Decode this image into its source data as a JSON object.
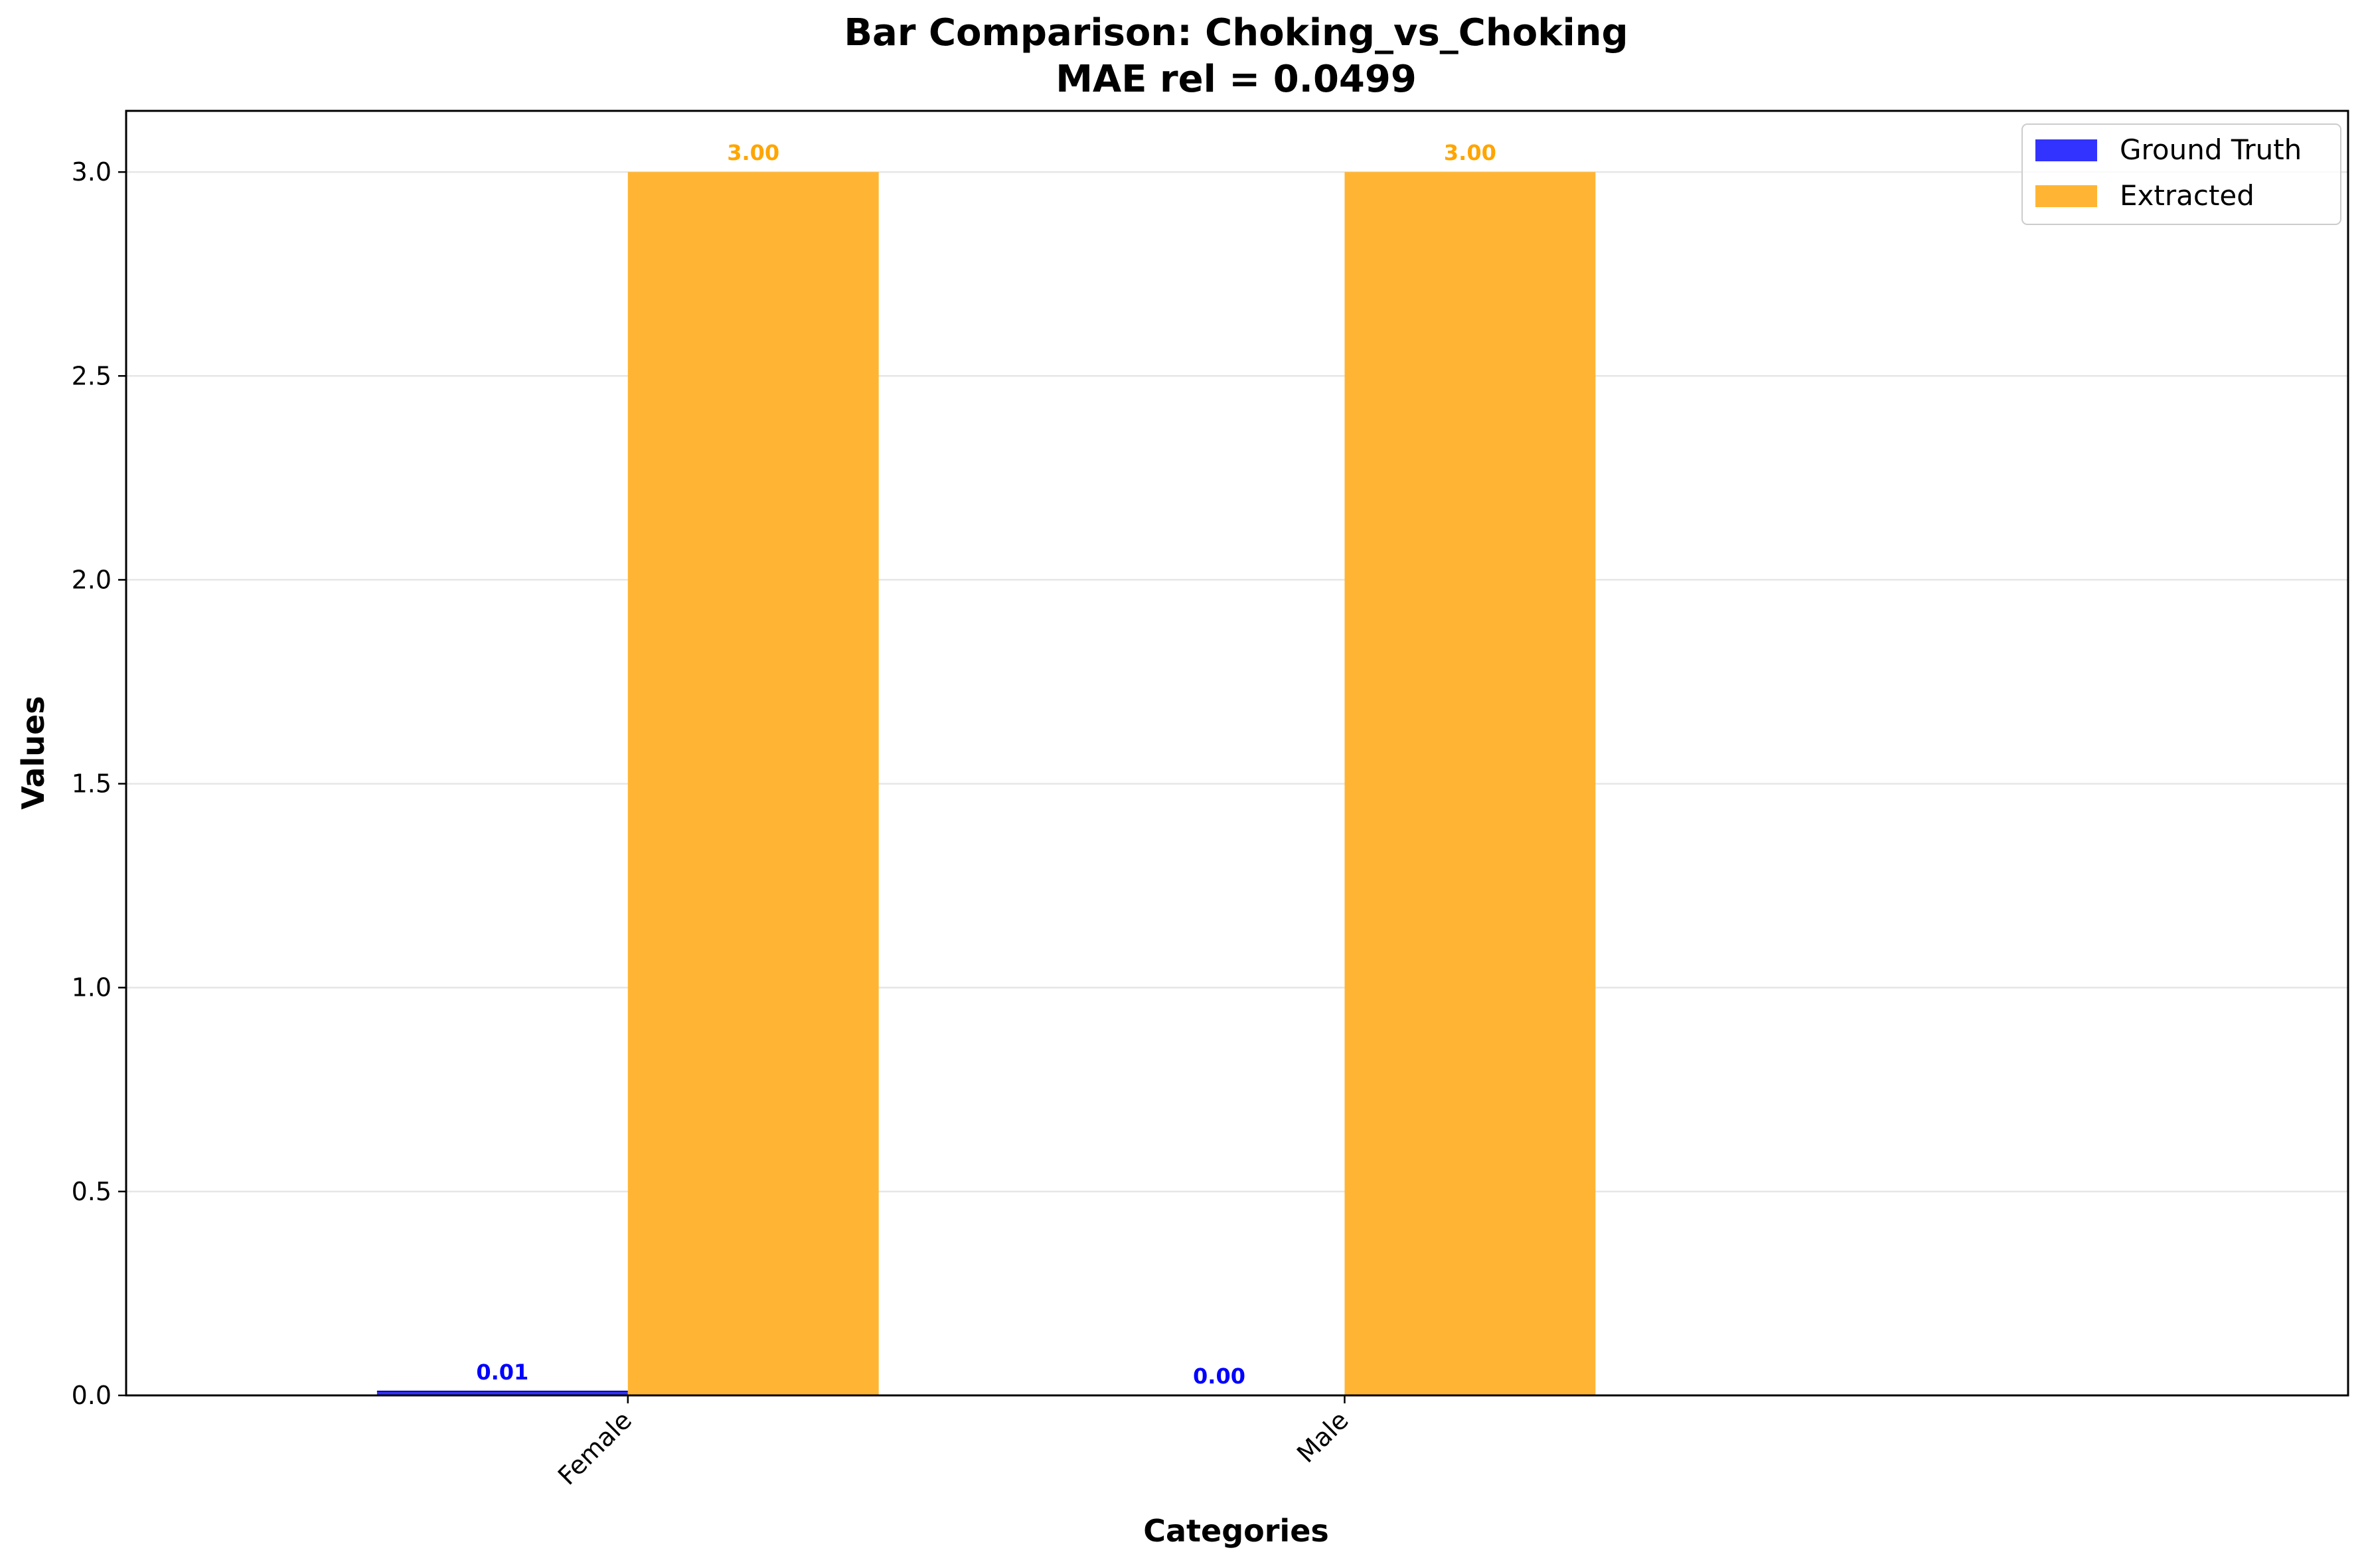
{
  "chart_data": {
    "type": "bar",
    "title": "Bar Comparison: Choking_vs_Choking",
    "subtitle": "MAE rel = 0.0499",
    "xlabel": "Categories",
    "ylabel": "Values",
    "categories": [
      "Female",
      "Male"
    ],
    "series": [
      {
        "name": "Ground Truth",
        "color": "#3333ff",
        "values": [
          0.01,
          0.0
        ],
        "labels": [
          "0.01",
          "0.00"
        ],
        "label_color": "#0000ff"
      },
      {
        "name": "Extracted",
        "color": "#ffb533",
        "values": [
          3.0,
          3.0
        ],
        "labels": [
          "3.00",
          "3.00"
        ],
        "label_color": "#ffa500"
      }
    ],
    "ylim": [
      0,
      3.15
    ],
    "yticks": [
      0.0,
      0.5,
      1.0,
      1.5,
      2.0,
      2.5,
      3.0
    ],
    "ytick_labels": [
      "0.0",
      "0.5",
      "1.0",
      "1.5",
      "2.0",
      "2.5",
      "3.0"
    ],
    "grid": "y",
    "legend_position": "top-right"
  }
}
